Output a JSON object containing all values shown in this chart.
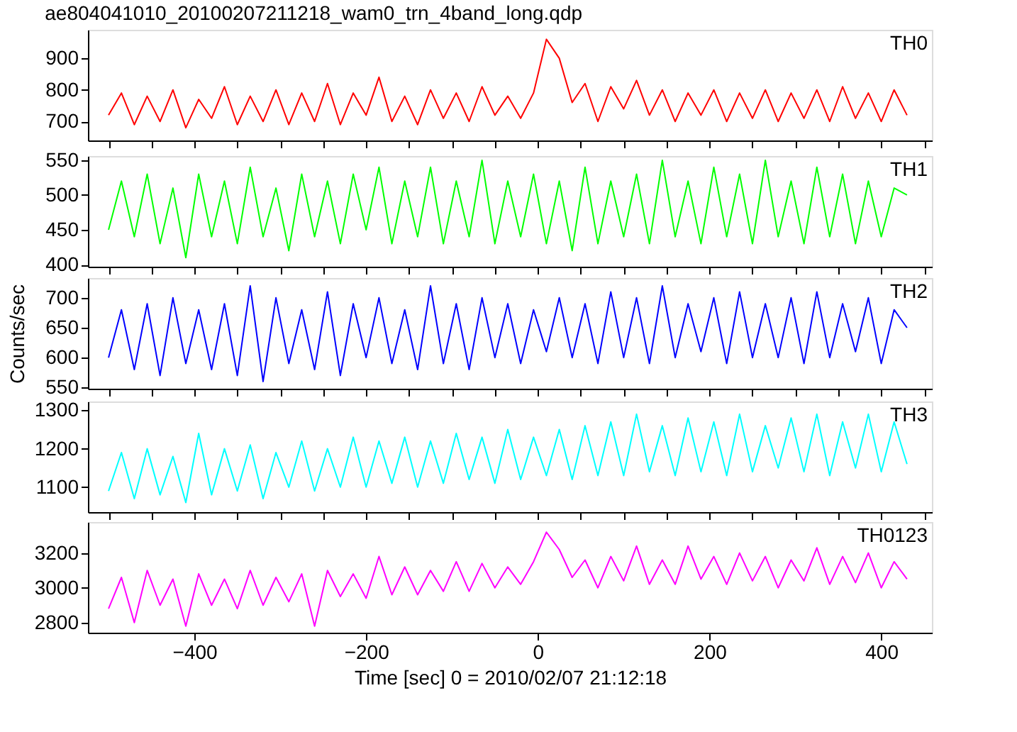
{
  "chart_data": [
    {
      "type": "line",
      "title": "ae804041010_20100207211218_wam0_trn_4band_long.qdp",
      "xlim": [
        -524,
        459
      ],
      "ylim": [
        640,
        990
      ],
      "yticks": [
        700,
        800,
        900
      ],
      "grid": false,
      "tick_labels": "y",
      "x": [
        -500,
        -485,
        -470,
        -455,
        -440,
        -425,
        -410,
        -395,
        -380,
        -365,
        -350,
        -335,
        -320,
        -305,
        -290,
        -275,
        -260,
        -245,
        -230,
        -215,
        -200,
        -185,
        -170,
        -155,
        -140,
        -125,
        -110,
        -95,
        -80,
        -65,
        -50,
        -35,
        -20,
        -5,
        10,
        25,
        40,
        55,
        70,
        85,
        100,
        115,
        130,
        145,
        160,
        175,
        190,
        205,
        220,
        235,
        250,
        265,
        280,
        295,
        310,
        325,
        340,
        355,
        370,
        385,
        400,
        415,
        430
      ],
      "series": [
        {
          "name": "TH0",
          "color": "#ff0000",
          "values": [
            720,
            790,
            690,
            780,
            700,
            800,
            680,
            770,
            710,
            810,
            690,
            780,
            700,
            800,
            690,
            790,
            700,
            820,
            690,
            790,
            720,
            840,
            700,
            780,
            690,
            800,
            710,
            790,
            700,
            810,
            720,
            780,
            710,
            790,
            960,
            900,
            760,
            820,
            700,
            810,
            740,
            830,
            720,
            800,
            700,
            790,
            720,
            800,
            700,
            790,
            710,
            800,
            700,
            790,
            710,
            800,
            700,
            810,
            710,
            790,
            700,
            800,
            720
          ]
        }
      ]
    },
    {
      "type": "line",
      "xlim": [
        -524,
        459
      ],
      "ylim": [
        397,
        556
      ],
      "yticks": [
        400,
        450,
        500,
        550
      ],
      "grid": false,
      "tick_labels": "y",
      "x": [
        -500,
        -485,
        -470,
        -455,
        -440,
        -425,
        -410,
        -395,
        -380,
        -365,
        -350,
        -335,
        -320,
        -305,
        -290,
        -275,
        -260,
        -245,
        -230,
        -215,
        -200,
        -185,
        -170,
        -155,
        -140,
        -125,
        -110,
        -95,
        -80,
        -65,
        -50,
        -35,
        -20,
        -5,
        10,
        25,
        40,
        55,
        70,
        85,
        100,
        115,
        130,
        145,
        160,
        175,
        190,
        205,
        220,
        235,
        250,
        265,
        280,
        295,
        310,
        325,
        340,
        355,
        370,
        385,
        400,
        415,
        430
      ],
      "series": [
        {
          "name": "TH1",
          "color": "#00ff00",
          "values": [
            450,
            520,
            440,
            530,
            430,
            510,
            410,
            530,
            440,
            520,
            430,
            540,
            440,
            510,
            420,
            530,
            440,
            520,
            430,
            530,
            450,
            540,
            430,
            520,
            440,
            540,
            430,
            520,
            440,
            550,
            430,
            520,
            440,
            530,
            430,
            520,
            420,
            540,
            430,
            520,
            440,
            530,
            430,
            550,
            440,
            520,
            430,
            540,
            440,
            530,
            430,
            550,
            440,
            520,
            430,
            540,
            440,
            530,
            430,
            520,
            440,
            510,
            500
          ]
        }
      ]
    },
    {
      "type": "line",
      "ylabel": "Counts/sec",
      "xlim": [
        -524,
        459
      ],
      "ylim": [
        548,
        733
      ],
      "yticks": [
        550,
        600,
        650,
        700
      ],
      "grid": false,
      "tick_labels": "y",
      "x": [
        -500,
        -485,
        -470,
        -455,
        -440,
        -425,
        -410,
        -395,
        -380,
        -365,
        -350,
        -335,
        -320,
        -305,
        -290,
        -275,
        -260,
        -245,
        -230,
        -215,
        -200,
        -185,
        -170,
        -155,
        -140,
        -125,
        -110,
        -95,
        -80,
        -65,
        -50,
        -35,
        -20,
        -5,
        10,
        25,
        40,
        55,
        70,
        85,
        100,
        115,
        130,
        145,
        160,
        175,
        190,
        205,
        220,
        235,
        250,
        265,
        280,
        295,
        310,
        325,
        340,
        355,
        370,
        385,
        400,
        415,
        430
      ],
      "series": [
        {
          "name": "TH2",
          "color": "#0000ff",
          "values": [
            600,
            680,
            580,
            690,
            570,
            700,
            590,
            680,
            580,
            690,
            570,
            720,
            560,
            700,
            590,
            680,
            580,
            710,
            570,
            690,
            600,
            700,
            590,
            680,
            580,
            720,
            590,
            690,
            580,
            700,
            600,
            690,
            590,
            680,
            610,
            700,
            600,
            690,
            590,
            710,
            600,
            700,
            590,
            720,
            600,
            690,
            610,
            700,
            590,
            710,
            600,
            690,
            600,
            700,
            590,
            710,
            600,
            690,
            610,
            700,
            590,
            680,
            650
          ]
        }
      ]
    },
    {
      "type": "line",
      "xlim": [
        -524,
        459
      ],
      "ylim": [
        1035,
        1323
      ],
      "yticks": [
        1100,
        1200,
        1300
      ],
      "grid": false,
      "tick_labels": "y",
      "x": [
        -500,
        -485,
        -470,
        -455,
        -440,
        -425,
        -410,
        -395,
        -380,
        -365,
        -350,
        -335,
        -320,
        -305,
        -290,
        -275,
        -260,
        -245,
        -230,
        -215,
        -200,
        -185,
        -170,
        -155,
        -140,
        -125,
        -110,
        -95,
        -80,
        -65,
        -50,
        -35,
        -20,
        -5,
        10,
        25,
        40,
        55,
        70,
        85,
        100,
        115,
        130,
        145,
        160,
        175,
        190,
        205,
        220,
        235,
        250,
        265,
        280,
        295,
        310,
        325,
        340,
        355,
        370,
        385,
        400,
        415,
        430
      ],
      "series": [
        {
          "name": "TH3",
          "color": "#00ffff",
          "values": [
            1090,
            1190,
            1070,
            1200,
            1080,
            1180,
            1060,
            1240,
            1080,
            1200,
            1090,
            1210,
            1070,
            1190,
            1100,
            1220,
            1090,
            1200,
            1100,
            1230,
            1100,
            1220,
            1110,
            1230,
            1100,
            1220,
            1110,
            1240,
            1120,
            1230,
            1110,
            1250,
            1120,
            1230,
            1130,
            1250,
            1120,
            1260,
            1130,
            1270,
            1130,
            1290,
            1140,
            1260,
            1130,
            1280,
            1140,
            1270,
            1130,
            1290,
            1140,
            1260,
            1150,
            1280,
            1140,
            1290,
            1130,
            1270,
            1150,
            1290,
            1140,
            1270,
            1160
          ]
        }
      ]
    },
    {
      "type": "line",
      "xlabel": "Time [sec] 0 = 2010/02/07 21:12:18",
      "xlim": [
        -524,
        459
      ],
      "xticks": [
        -400,
        -200,
        0,
        200,
        400
      ],
      "ylim": [
        2742,
        3378
      ],
      "yticks": [
        2800,
        3000,
        3200
      ],
      "grid": false,
      "x": [
        -500,
        -485,
        -470,
        -455,
        -440,
        -425,
        -410,
        -395,
        -380,
        -365,
        -350,
        -335,
        -320,
        -305,
        -290,
        -275,
        -260,
        -245,
        -230,
        -215,
        -200,
        -185,
        -170,
        -155,
        -140,
        -125,
        -110,
        -95,
        -80,
        -65,
        -50,
        -35,
        -20,
        -5,
        10,
        25,
        40,
        55,
        70,
        85,
        100,
        115,
        130,
        145,
        160,
        175,
        190,
        205,
        220,
        235,
        250,
        265,
        280,
        295,
        310,
        325,
        340,
        355,
        370,
        385,
        400,
        415,
        430
      ],
      "series": [
        {
          "name": "TH0123",
          "color": "#ff00ff",
          "values": [
            2880,
            3060,
            2800,
            3100,
            2900,
            3050,
            2780,
            3080,
            2900,
            3050,
            2880,
            3100,
            2900,
            3060,
            2920,
            3080,
            2780,
            3100,
            2950,
            3080,
            2940,
            3180,
            2960,
            3120,
            2960,
            3100,
            2980,
            3150,
            2980,
            3140,
            3000,
            3120,
            3020,
            3150,
            3320,
            3220,
            3060,
            3160,
            3000,
            3180,
            3040,
            3240,
            3020,
            3160,
            3020,
            3240,
            3050,
            3180,
            3020,
            3200,
            3040,
            3180,
            3000,
            3160,
            3040,
            3230,
            3020,
            3180,
            3030,
            3200,
            3000,
            3150,
            3050
          ]
        }
      ]
    }
  ]
}
